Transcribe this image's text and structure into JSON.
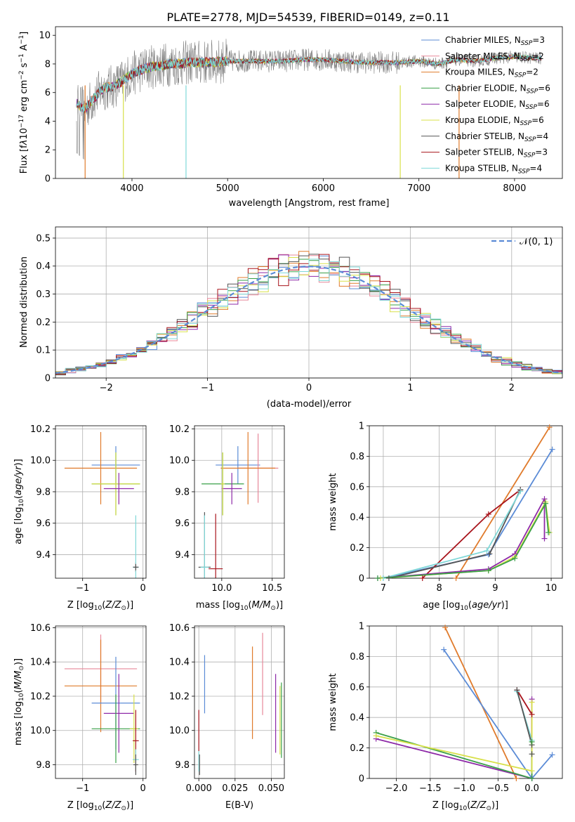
{
  "figure": {
    "title": "PLATE=2778, MJD=54539, FIBERID=0149, z=0.11"
  },
  "colors": {
    "Chabrier MILES": "#5b8bd6",
    "Salpeter MILES": "#e8889a",
    "Kroupa MILES": "#e07b2c",
    "Chabrier ELODIE": "#3aa048",
    "Salpeter ELODIE": "#8e2aa8",
    "Kroupa ELODIE": "#d8e04a",
    "Chabrier STELIB": "#555555",
    "Salpeter STELIB": "#a8141c",
    "Kroupa STELIB": "#7fd8d8",
    "data": "#808080",
    "normal": "#5b8bd6"
  },
  "chart_data": [
    {
      "type": "line",
      "id": "spectrum",
      "title": "PLATE=2778, MJD=54539, FIBERID=0149, z=0.11",
      "xlabel": "wavelength [Angstrom, rest frame]",
      "ylabel": "Flux [f",
      "xlim": [
        3200,
        8500
      ],
      "ylim": [
        0,
        10.6
      ],
      "xticks": [
        4000,
        5000,
        6000,
        7000,
        8000
      ],
      "yticks": [
        0,
        2,
        4,
        6,
        8,
        10
      ],
      "grid": false,
      "legend": "upper-right",
      "series": [
        {
          "name": "Chabrier MILES, N",
          "ssp": "SSP",
          "n": "=3"
        },
        {
          "name": "Salpeter MILES, N",
          "ssp": "SSP",
          "n": "=2"
        },
        {
          "name": "Kroupa MILES, N",
          "ssp": "SSP",
          "n": "=2"
        },
        {
          "name": "Chabrier ELODIE, N",
          "ssp": "SSP",
          "n": "=6"
        },
        {
          "name": "Salpeter ELODIE, N",
          "ssp": "SSP",
          "n": "=6"
        },
        {
          "name": "Kroupa ELODIE, N",
          "ssp": "SSP",
          "n": "=6"
        },
        {
          "name": "Chabrier STELIB, N",
          "ssp": "SSP",
          "n": "=4"
        },
        {
          "name": "Salpeter STELIB, N",
          "ssp": "SSP",
          "n": "=3"
        },
        {
          "name": "Kroupa STELIB, N",
          "ssp": "SSP",
          "n": "=4"
        }
      ],
      "continuum": {
        "x": [
          3420,
          3500,
          3600,
          3700,
          3800,
          3900,
          4000,
          4100,
          4200,
          4300,
          4400,
          4500,
          4600,
          4800,
          5000,
          5200,
          5400,
          5600,
          5800,
          6000,
          6200,
          6400,
          6600,
          6800,
          7000,
          7200,
          7400,
          7600,
          7800,
          8000,
          8200,
          8280
        ],
        "y": [
          5.3,
          4.8,
          5.6,
          6.3,
          6.4,
          6.8,
          7.3,
          7.6,
          7.8,
          7.9,
          8.0,
          8.0,
          8.1,
          8.1,
          8.2,
          8.2,
          8.2,
          8.2,
          8.3,
          8.3,
          8.2,
          8.1,
          8.1,
          8.1,
          8.2,
          8.0,
          8.3,
          8.2,
          8.4,
          8.5,
          8.4,
          8.4
        ]
      }
    },
    {
      "type": "line",
      "id": "residuals",
      "xlabel": "(data-model)/error",
      "ylabel": "Normed distribution",
      "xlim": [
        -2.5,
        2.5
      ],
      "ylim": [
        0,
        0.54
      ],
      "xticks": [
        -2,
        -1,
        0,
        1,
        2
      ],
      "xtick_labels": [
        "−2",
        "−1",
        "0",
        "1",
        "2"
      ],
      "yticks": [
        0.0,
        0.1,
        0.2,
        0.3,
        0.4,
        0.5
      ],
      "grid": true,
      "legend": "upper-right",
      "normal_label": "𝒩(0, 1)",
      "bin_width": 0.1
    },
    {
      "type": "scatter",
      "id": "age-vs-Z",
      "xlabel": "Z [log",
      "ylabel": "age  [log",
      "xlim": [
        -1.45,
        0.05
      ],
      "ylim": [
        9.25,
        10.22
      ],
      "xticks": [
        -1,
        0
      ],
      "xtick_labels": [
        "−1",
        "0"
      ],
      "yticks": [
        9.4,
        9.6,
        9.8,
        10.0,
        10.2
      ],
      "ytick_labels": [
        "9.4",
        "9.6",
        "9.8",
        "10.0",
        "10.2"
      ],
      "grid": true,
      "points": [
        {
          "series": "Chabrier MILES",
          "x": -0.45,
          "y": 9.97,
          "xerr": 0.4,
          "yerr": 0.12
        },
        {
          "series": "Kroupa MILES",
          "x": -0.7,
          "y": 9.95,
          "xerr": 0.6,
          "yerr": 0.23
        },
        {
          "series": "Chabrier ELODIE",
          "x": -0.45,
          "y": 9.85,
          "xerr": 0.4,
          "yerr": 0.2
        },
        {
          "series": "Kroupa ELODIE",
          "x": -0.45,
          "y": 9.85,
          "xerr": 0.4,
          "yerr": 0.2
        },
        {
          "series": "Salpeter ELODIE",
          "x": -0.4,
          "y": 9.82,
          "xerr": 0.25,
          "yerr": 0.1
        },
        {
          "series": "Salpeter STELIB",
          "x": -0.12,
          "y": 9.32,
          "xerr": 0.05,
          "yerr": 0.03
        },
        {
          "series": "Kroupa STELIB",
          "x": -0.12,
          "y": 9.32,
          "xerr": 0.05,
          "yerr": 0.33
        },
        {
          "series": "Chabrier STELIB",
          "x": -0.12,
          "y": 9.32,
          "xerr": 0.04,
          "yerr": 0.02
        }
      ]
    },
    {
      "type": "scatter",
      "id": "age-vs-mass",
      "xlabel": "mass [log",
      "xlim": [
        9.73,
        10.62
      ],
      "ylim": [
        9.25,
        10.22
      ],
      "xticks": [
        10.0,
        10.5
      ],
      "xtick_labels": [
        "10.0",
        "10.5"
      ],
      "yticks": [
        9.4,
        9.6,
        9.8,
        10.0,
        10.2
      ],
      "ytick_labels": [
        "9.4",
        "9.6",
        "9.8",
        "10.0",
        "10.2"
      ],
      "grid": true,
      "points": [
        {
          "series": "Chabrier MILES",
          "x": 10.16,
          "y": 9.97,
          "xerr": 0.22,
          "yerr": 0.12
        },
        {
          "series": "Salpeter MILES",
          "x": 10.36,
          "y": 9.95,
          "xerr": 0.2,
          "yerr": 0.22
        },
        {
          "series": "Kroupa MILES",
          "x": 10.26,
          "y": 9.95,
          "xerr": 0.27,
          "yerr": 0.23
        },
        {
          "series": "Chabrier ELODIE",
          "x": 10.01,
          "y": 9.85,
          "xerr": 0.21,
          "yerr": 0.2
        },
        {
          "series": "Salpeter ELODIE",
          "x": 10.1,
          "y": 9.82,
          "xerr": 0.1,
          "yerr": 0.1
        },
        {
          "series": "Kroupa ELODIE",
          "x": 10.01,
          "y": 9.85,
          "xerr": 0.02,
          "yerr": 0.2
        },
        {
          "series": "Chabrier STELIB",
          "x": 9.83,
          "y": 9.32,
          "xerr": 0.06,
          "yerr": 0.35
        },
        {
          "series": "Salpeter STELIB",
          "x": 9.94,
          "y": 9.31,
          "xerr": 0.07,
          "yerr": 0.35
        },
        {
          "series": "Kroupa STELIB",
          "x": 9.83,
          "y": 9.32,
          "xerr": 0.04,
          "yerr": 0.33
        }
      ]
    },
    {
      "type": "line",
      "id": "massweight-vs-age",
      "xlabel": "age  [log",
      "ylabel": "mass weight",
      "xlim": [
        6.75,
        10.2
      ],
      "ylim": [
        0,
        1.0
      ],
      "xticks": [
        7,
        8,
        9,
        10
      ],
      "yticks": [
        0.0,
        0.2,
        0.4,
        0.6,
        0.8,
        1.0
      ],
      "grid": true,
      "series": [
        {
          "name": "Chabrier MILES",
          "x": [
            7.0,
            8.88,
            10.02
          ],
          "y": [
            0.0,
            0.155,
            0.845
          ]
        },
        {
          "name": "Kroupa MILES",
          "x": [
            8.3,
            9.97
          ],
          "y": [
            0.0,
            0.99
          ]
        },
        {
          "name": "Salpeter STELIB",
          "x": [
            7.7,
            8.88,
            9.45
          ],
          "y": [
            0.0,
            0.42,
            0.58
          ]
        },
        {
          "name": "Chabrier STELIB",
          "x": [
            7.1,
            8.9,
            9.45
          ],
          "y": [
            0.0,
            0.16,
            0.58
          ]
        },
        {
          "name": "Kroupa STELIB",
          "x": [
            7.0,
            8.85,
            9.45
          ],
          "y": [
            0.0,
            0.18,
            0.57
          ]
        },
        {
          "name": "Salpeter ELODIE",
          "x": [
            6.9,
            8.88,
            9.35,
            9.88,
            9.88
          ],
          "y": [
            0.0,
            0.06,
            0.16,
            0.52,
            0.26
          ]
        },
        {
          "name": "Kroupa ELODIE",
          "x": [
            6.95,
            8.88,
            9.35,
            9.9,
            9.97
          ],
          "y": [
            0.0,
            0.05,
            0.14,
            0.5,
            0.3
          ]
        },
        {
          "name": "Chabrier ELODIE",
          "x": [
            6.9,
            8.88,
            9.35,
            9.9,
            9.95
          ],
          "y": [
            0.0,
            0.05,
            0.13,
            0.49,
            0.3
          ]
        }
      ]
    },
    {
      "type": "scatter",
      "id": "mass-vs-Z",
      "xlabel": "Z [log",
      "ylabel": "mass [log",
      "xlim": [
        -1.45,
        0.05
      ],
      "ylim": [
        9.72,
        10.61
      ],
      "xticks": [
        -1,
        0
      ],
      "xtick_labels": [
        "−1",
        "0"
      ],
      "yticks": [
        9.8,
        10.0,
        10.2,
        10.4,
        10.6
      ],
      "ytick_labels": [
        "9.8",
        "10.0",
        "10.2",
        "10.4",
        "10.6"
      ],
      "grid": true,
      "points": [
        {
          "series": "Salpeter MILES",
          "x": -0.7,
          "y": 10.36,
          "xerr": 0.6,
          "yerr": 0.2
        },
        {
          "series": "Kroupa MILES",
          "x": -0.7,
          "y": 10.26,
          "xerr": 0.6,
          "yerr": 0.27
        },
        {
          "series": "Chabrier MILES",
          "x": -0.45,
          "y": 10.16,
          "xerr": 0.4,
          "yerr": 0.27
        },
        {
          "series": "Salpeter ELODIE",
          "x": -0.4,
          "y": 10.1,
          "xerr": 0.25,
          "yerr": 0.23
        },
        {
          "series": "Chabrier ELODIE",
          "x": -0.45,
          "y": 10.01,
          "xerr": 0.4,
          "yerr": 0.2
        },
        {
          "series": "Kroupa ELODIE",
          "x": -0.15,
          "y": 10.01,
          "xerr": 0.07,
          "yerr": 0.2
        },
        {
          "series": "Salpeter STELIB",
          "x": -0.12,
          "y": 9.94,
          "xerr": 0.05,
          "yerr": 0.18
        },
        {
          "series": "Kroupa STELIB",
          "x": -0.12,
          "y": 9.83,
          "xerr": 0.05,
          "yerr": 0.06
        },
        {
          "series": "Chabrier STELIB",
          "x": -0.12,
          "y": 9.8,
          "xerr": 0.04,
          "yerr": 0.06
        }
      ]
    },
    {
      "type": "scatter",
      "id": "mass-vs-EBV",
      "xlabel": "E(B-V)",
      "xlim": [
        -0.003,
        0.059
      ],
      "ylim": [
        9.72,
        10.61
      ],
      "xticks": [
        0.0,
        0.025,
        0.05
      ],
      "xtick_labels": [
        "0.000",
        "0.025",
        "0.050"
      ],
      "yticks": [
        9.8,
        10.0,
        10.2,
        10.4,
        10.6
      ],
      "ytick_labels": [
        "9.8",
        "10.0",
        "10.2",
        "10.4",
        "10.6"
      ],
      "grid": true,
      "points": [
        {
          "series": "Chabrier MILES",
          "x": 0.004,
          "y": 10.27,
          "yerr": 0.17
        },
        {
          "series": "Salpeter STELIB",
          "x": 0.0,
          "y": 10.0,
          "yerr": 0.12
        },
        {
          "series": "Kroupa STELIB",
          "x": 0.0,
          "y": 9.82,
          "yerr": 0.06
        },
        {
          "series": "Chabrier STELIB",
          "x": 0.0005,
          "y": 9.8,
          "yerr": 0.06
        },
        {
          "series": "Kroupa MILES",
          "x": 0.037,
          "y": 10.22,
          "yerr": 0.27
        },
        {
          "series": "Salpeter MILES",
          "x": 0.044,
          "y": 10.33,
          "yerr": 0.24
        },
        {
          "series": "Salpeter ELODIE",
          "x": 0.053,
          "y": 10.1,
          "yerr": 0.23
        },
        {
          "series": "Chabrier ELODIE",
          "x": 0.057,
          "y": 10.06,
          "yerr": 0.22
        },
        {
          "series": "Kroupa ELODIE",
          "x": 0.056,
          "y": 10.06,
          "yerr": 0.2
        }
      ]
    },
    {
      "type": "line",
      "id": "massweight-vs-Z",
      "xlabel": "Z [log",
      "ylabel": "mass weight",
      "xlim": [
        -2.4,
        0.45
      ],
      "ylim": [
        0,
        1.0
      ],
      "xticks": [
        -2.0,
        -1.5,
        -1.0,
        -0.5,
        0.0
      ],
      "xtick_labels": [
        "−2.0",
        "−1.5",
        "−1.0",
        "−0.5",
        "0.0"
      ],
      "yticks": [
        0.0,
        0.2,
        0.4,
        0.6,
        0.8,
        1.0
      ],
      "grid": true,
      "series": [
        {
          "name": "Kroupa MILES",
          "x": [
            -1.28,
            -0.23
          ],
          "y": [
            0.99,
            0.0
          ]
        },
        {
          "name": "Chabrier MILES",
          "x": [
            -1.3,
            0.0,
            0.0,
            0.3
          ],
          "y": [
            0.845,
            0.0,
            0.0,
            0.155
          ]
        },
        {
          "name": "Salpeter STELIB",
          "x": [
            -0.22,
            0.0,
            0.0
          ],
          "y": [
            0.58,
            0.42,
            0.0
          ]
        },
        {
          "name": "Kroupa STELIB",
          "x": [
            -0.22,
            0.0,
            0.0
          ],
          "y": [
            0.57,
            0.25,
            0.0
          ]
        },
        {
          "name": "Chabrier STELIB",
          "x": [
            -0.22,
            0.0,
            0.0
          ],
          "y": [
            0.58,
            0.22,
            0.16
          ]
        },
        {
          "name": "Salpeter ELODIE",
          "x": [
            -2.3,
            0.0,
            0.0
          ],
          "y": [
            0.26,
            0.0,
            0.52
          ]
        },
        {
          "name": "Chabrier ELODIE",
          "x": [
            -2.3,
            0.0,
            0.0
          ],
          "y": [
            0.3,
            0.0,
            0.24
          ]
        },
        {
          "name": "Kroupa ELODIE",
          "x": [
            -2.3,
            0.0,
            0.0
          ],
          "y": [
            0.28,
            0.05,
            0.5
          ]
        }
      ]
    }
  ]
}
